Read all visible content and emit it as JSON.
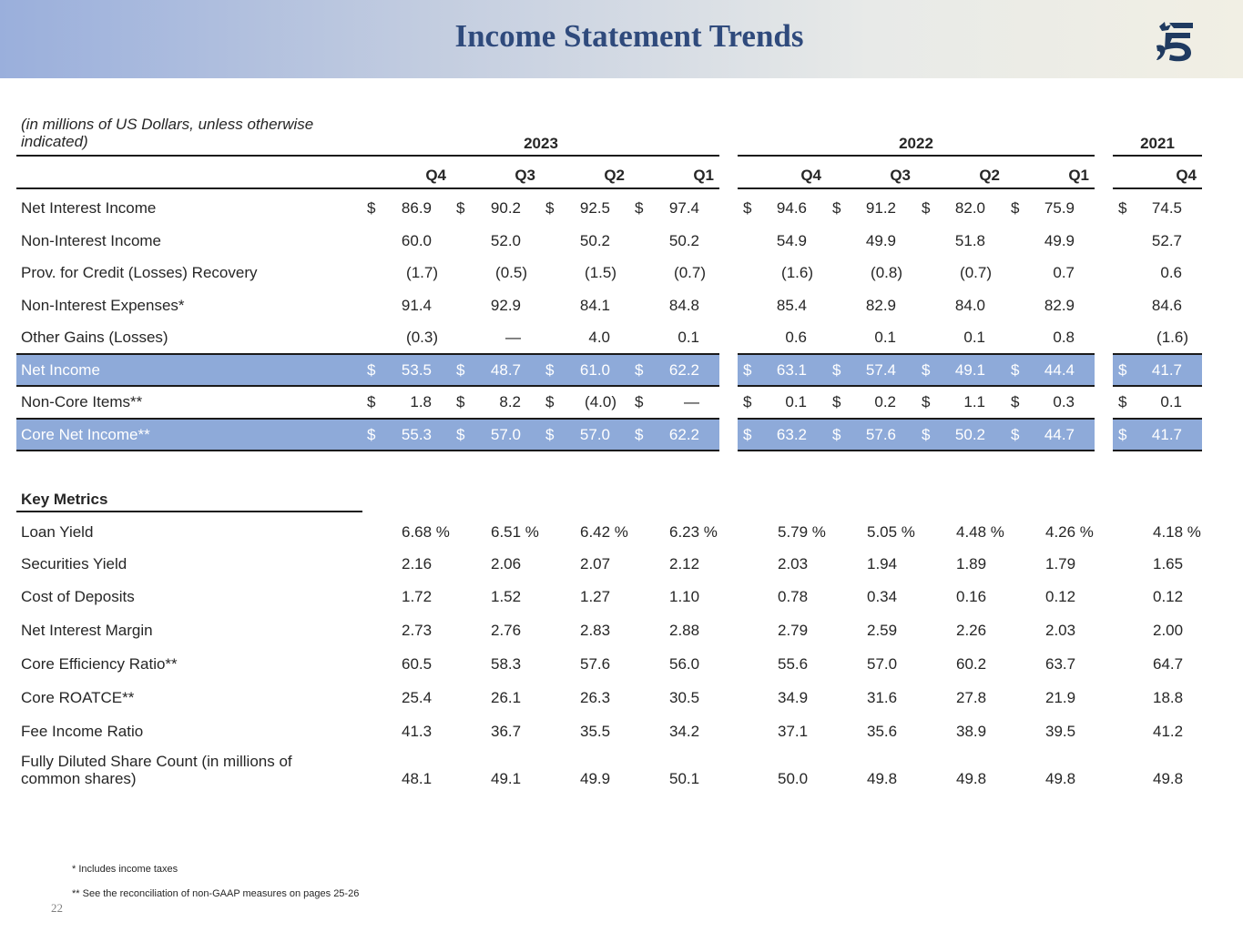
{
  "title": "Income Statement Trends",
  "units_note": [
    "(in millions of US Dollars, unless otherwise",
    "indicated)"
  ],
  "years": [
    "2023",
    "2022",
    "2021"
  ],
  "quarters": [
    "Q4",
    "Q3",
    "Q2",
    "Q1",
    "Q4",
    "Q3",
    "Q2",
    "Q1",
    "Q4"
  ],
  "income_rows": [
    {
      "label": "Net Interest Income",
      "dollar": true,
      "highlight": false,
      "values": [
        "86.9",
        "90.2",
        "92.5",
        "97.4",
        "94.6",
        "91.2",
        "82.0",
        "75.9",
        "74.5"
      ]
    },
    {
      "label": "Non-Interest Income",
      "dollar": false,
      "highlight": false,
      "values": [
        "60.0",
        "52.0",
        "50.2",
        "50.2",
        "54.9",
        "49.9",
        "51.8",
        "49.9",
        "52.7"
      ]
    },
    {
      "label": "Prov. for Credit (Losses) Recovery",
      "dollar": false,
      "highlight": false,
      "values": [
        "(1.7)",
        "(0.5)",
        "(1.5)",
        "(0.7)",
        "(1.6)",
        "(0.8)",
        "(0.7)",
        "0.7",
        "0.6"
      ]
    },
    {
      "label": "Non-Interest Expenses*",
      "dollar": false,
      "highlight": false,
      "values": [
        "91.4",
        "92.9",
        "84.1",
        "84.8",
        "85.4",
        "82.9",
        "84.0",
        "82.9",
        "84.6"
      ]
    },
    {
      "label": "Other Gains (Losses)",
      "dollar": false,
      "highlight": false,
      "values": [
        "(0.3)",
        "—",
        "4.0",
        "0.1",
        "0.6",
        "0.1",
        "0.1",
        "0.8",
        "(1.6)"
      ]
    },
    {
      "label": "Net Income",
      "dollar": true,
      "highlight": true,
      "values": [
        "53.5",
        "48.7",
        "61.0",
        "62.2",
        "63.1",
        "57.4",
        "49.1",
        "44.4",
        "41.7"
      ]
    },
    {
      "label": "Non-Core Items**",
      "dollar": true,
      "highlight": false,
      "values": [
        "1.8",
        "8.2",
        "(4.0)",
        "—",
        "0.1",
        "0.2",
        "1.1",
        "0.3",
        "0.1"
      ]
    },
    {
      "label": "Core Net Income**",
      "dollar": true,
      "highlight": true,
      "values": [
        "55.3",
        "57.0",
        "57.0",
        "62.2",
        "63.2",
        "57.6",
        "50.2",
        "44.7",
        "41.7"
      ]
    }
  ],
  "dollar_sign": "$",
  "key_metrics_heading": "Key Metrics",
  "metric_rows": [
    {
      "label": "Loan Yield",
      "values": [
        "6.68 %",
        "6.51 %",
        "6.42 %",
        "6.23 %",
        "5.79 %",
        "5.05 %",
        "4.48 %",
        "4.26 %",
        "4.18 %"
      ]
    },
    {
      "label": "Securities Yield",
      "values": [
        "2.16",
        "2.06",
        "2.07",
        "2.12",
        "2.03",
        "1.94",
        "1.89",
        "1.79",
        "1.65"
      ]
    },
    {
      "label": "Cost of Deposits",
      "values": [
        "1.72",
        "1.52",
        "1.27",
        "1.10",
        "0.78",
        "0.34",
        "0.16",
        "0.12",
        "0.12"
      ]
    },
    {
      "label": "Net Interest Margin",
      "values": [
        "2.73",
        "2.76",
        "2.83",
        "2.88",
        "2.79",
        "2.59",
        "2.26",
        "2.03",
        "2.00"
      ]
    },
    {
      "label": "Core Efficiency Ratio**",
      "values": [
        "60.5",
        "58.3",
        "57.6",
        "56.0",
        "55.6",
        "57.0",
        "60.2",
        "63.7",
        "64.7"
      ]
    },
    {
      "label": "Core ROATCE**",
      "values": [
        "25.4",
        "26.1",
        "26.3",
        "30.5",
        "34.9",
        "31.6",
        "27.8",
        "21.9",
        "18.8"
      ]
    },
    {
      "label": "Fee Income Ratio",
      "values": [
        "41.3",
        "36.7",
        "35.5",
        "34.2",
        "37.1",
        "35.6",
        "38.9",
        "39.5",
        "41.2"
      ]
    },
    {
      "label": [
        "Fully Diluted Share Count (in millions of",
        "common shares)"
      ],
      "values": [
        "48.1",
        "49.1",
        "49.9",
        "50.1",
        "50.0",
        "49.8",
        "49.8",
        "49.8",
        "49.8"
      ]
    }
  ],
  "footnotes": [
    "* Includes income taxes",
    "** See the reconciliation of non-GAAP measures on pages 25-26"
  ],
  "page_number": "22",
  "logo_icon": "bank-logo-icon",
  "colors": {
    "title": "#2f4a7c",
    "highlight_row": "#8eaad9",
    "header_left": "#9aafdc",
    "header_right": "#f1efe4"
  }
}
